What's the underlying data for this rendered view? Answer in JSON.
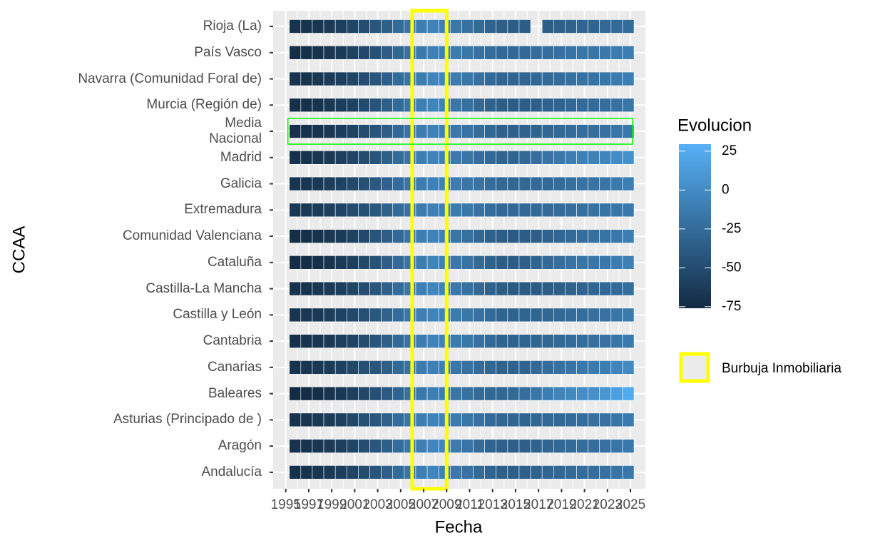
{
  "chart_data": {
    "type": "heatmap",
    "x_label": "Fecha",
    "y_label": "CCAA",
    "x": [
      1995,
      1996,
      1997,
      1998,
      1999,
      2000,
      2001,
      2002,
      2003,
      2004,
      2005,
      2006,
      2007,
      2008,
      2009,
      2010,
      2011,
      2012,
      2013,
      2014,
      2015,
      2016,
      2017,
      2018,
      2019,
      2020,
      2021,
      2022,
      2023,
      2024
    ],
    "xlim": [
      1993.9,
      2026.3
    ],
    "xticks": [
      1995,
      1997,
      1999,
      2001,
      2003,
      2005,
      2007,
      2009,
      2011,
      2013,
      2015,
      2017,
      2019,
      2021,
      2023,
      2025
    ],
    "categories": [
      "Rioja (La)",
      "País Vasco",
      "Navarra (Comunidad Foral de)",
      "Murcia (Región de)",
      "Media\nNacional",
      "Madrid",
      "Galicia",
      "Extremadura",
      "Comunidad Valenciana",
      "Cataluña",
      "Castilla-La Mancha",
      "Castilla y León",
      "Cantabria",
      "Canarias",
      "Baleares",
      "Asturias (Principado de )",
      "Aragón",
      "Andalucía"
    ],
    "values": [
      [
        -70,
        -69,
        -67,
        -64,
        -60,
        -55,
        -49,
        -42,
        -34,
        -26,
        -18,
        -11,
        -7,
        -9,
        -16,
        -21,
        -26,
        -31,
        -35,
        -37,
        -37,
        null,
        -36,
        -34,
        -32,
        -30,
        -30,
        -28,
        -26,
        -24
      ],
      [
        -74,
        -72,
        -70,
        -67,
        -63,
        -58,
        -52,
        -45,
        -37,
        -29,
        -21,
        -14,
        -9,
        -9,
        -13,
        -16,
        -20,
        -24,
        -27,
        -28,
        -27,
        -25,
        -23,
        -21,
        -19,
        -17,
        -17,
        -15,
        -13,
        -11
      ],
      [
        -70,
        -69,
        -67,
        -64,
        -60,
        -55,
        -49,
        -42,
        -34,
        -26,
        -18,
        -11,
        -6,
        -6,
        -12,
        -16,
        -21,
        -26,
        -30,
        -31,
        -30,
        -28,
        -26,
        -24,
        -22,
        -20,
        -19,
        -17,
        -14,
        -11
      ],
      [
        -72,
        -71,
        -69,
        -66,
        -62,
        -57,
        -51,
        -44,
        -35,
        -26,
        -17,
        -10,
        -6,
        -8,
        -16,
        -21,
        -27,
        -32,
        -36,
        -37,
        -36,
        -34,
        -32,
        -30,
        -28,
        -26,
        -25,
        -23,
        -20,
        -17
      ],
      [
        -72,
        -71,
        -69,
        -66,
        -62,
        -57,
        -51,
        -44,
        -36,
        -27,
        -19,
        -12,
        -8,
        -9,
        -15,
        -19,
        -24,
        -29,
        -33,
        -34,
        -33,
        -31,
        -29,
        -27,
        -25,
        -23,
        -23,
        -21,
        -18,
        -15
      ],
      [
        -71,
        -70,
        -68,
        -65,
        -61,
        -56,
        -50,
        -43,
        -35,
        -26,
        -18,
        -11,
        -7,
        -8,
        -14,
        -18,
        -23,
        -27,
        -30,
        -30,
        -27,
        -23,
        -19,
        -15,
        -11,
        -8,
        -8,
        -5,
        0,
        5
      ],
      [
        -68,
        -67,
        -65,
        -62,
        -58,
        -53,
        -47,
        -40,
        -33,
        -25,
        -18,
        -12,
        -8,
        -8,
        -12,
        -16,
        -20,
        -25,
        -28,
        -29,
        -28,
        -27,
        -26,
        -24,
        -22,
        -20,
        -19,
        -17,
        -14,
        -11
      ],
      [
        -66,
        -65,
        -63,
        -60,
        -56,
        -51,
        -46,
        -40,
        -33,
        -26,
        -19,
        -13,
        -9,
        -9,
        -13,
        -16,
        -20,
        -24,
        -27,
        -28,
        -28,
        -27,
        -26,
        -25,
        -23,
        -22,
        -21,
        -19,
        -17,
        -15
      ],
      [
        -73,
        -72,
        -70,
        -67,
        -63,
        -58,
        -52,
        -44,
        -36,
        -27,
        -18,
        -11,
        -7,
        -9,
        -17,
        -22,
        -28,
        -33,
        -37,
        -38,
        -37,
        -35,
        -32,
        -29,
        -26,
        -23,
        -22,
        -19,
        -15,
        -11
      ],
      [
        -75,
        -74,
        -72,
        -69,
        -65,
        -60,
        -53,
        -45,
        -36,
        -27,
        -18,
        -11,
        -6,
        -8,
        -15,
        -20,
        -26,
        -32,
        -36,
        -37,
        -35,
        -31,
        -27,
        -23,
        -20,
        -17,
        -17,
        -15,
        -12,
        -9
      ],
      [
        -70,
        -69,
        -67,
        -64,
        -60,
        -55,
        -49,
        -42,
        -34,
        -25,
        -16,
        -9,
        -5,
        -7,
        -15,
        -21,
        -27,
        -33,
        -37,
        -39,
        -39,
        -38,
        -37,
        -35,
        -33,
        -31,
        -30,
        -28,
        -26,
        -23
      ],
      [
        -68,
        -67,
        -65,
        -62,
        -58,
        -53,
        -47,
        -40,
        -32,
        -24,
        -16,
        -10,
        -6,
        -7,
        -12,
        -16,
        -21,
        -26,
        -30,
        -31,
        -31,
        -30,
        -29,
        -27,
        -25,
        -23,
        -22,
        -20,
        -17,
        -14
      ],
      [
        -71,
        -70,
        -68,
        -65,
        -61,
        -56,
        -50,
        -43,
        -35,
        -27,
        -19,
        -12,
        -7,
        -7,
        -12,
        -16,
        -21,
        -26,
        -30,
        -31,
        -31,
        -30,
        -29,
        -27,
        -25,
        -23,
        -22,
        -20,
        -17,
        -14
      ],
      [
        -69,
        -68,
        -66,
        -63,
        -59,
        -54,
        -48,
        -42,
        -35,
        -27,
        -20,
        -13,
        -9,
        -10,
        -16,
        -20,
        -25,
        -29,
        -32,
        -32,
        -30,
        -27,
        -24,
        -21,
        -18,
        -15,
        -14,
        -11,
        -6,
        -1
      ],
      [
        -76,
        -75,
        -73,
        -70,
        -66,
        -61,
        -54,
        -46,
        -38,
        -30,
        -22,
        -15,
        -10,
        -11,
        -17,
        -21,
        -25,
        -28,
        -29,
        -27,
        -23,
        -17,
        -11,
        -6,
        -2,
        1,
        2,
        8,
        16,
        25
      ],
      [
        -69,
        -68,
        -66,
        -63,
        -59,
        -54,
        -48,
        -41,
        -33,
        -25,
        -17,
        -11,
        -7,
        -7,
        -12,
        -16,
        -21,
        -26,
        -29,
        -30,
        -30,
        -29,
        -28,
        -27,
        -25,
        -23,
        -22,
        -20,
        -17,
        -14
      ],
      [
        -70,
        -69,
        -67,
        -64,
        -60,
        -55,
        -49,
        -42,
        -34,
        -25,
        -16,
        -9,
        -4,
        -5,
        -13,
        -18,
        -24,
        -30,
        -34,
        -35,
        -34,
        -32,
        -30,
        -28,
        -26,
        -24,
        -23,
        -21,
        -18,
        -15
      ],
      [
        -71,
        -70,
        -68,
        -65,
        -61,
        -56,
        -50,
        -43,
        -35,
        -26,
        -17,
        -10,
        -6,
        -8,
        -15,
        -20,
        -26,
        -31,
        -34,
        -35,
        -34,
        -32,
        -30,
        -28,
        -26,
        -24,
        -23,
        -21,
        -18,
        -15
      ]
    ],
    "colorbar": {
      "title": "Evolucion",
      "lim": [
        -76,
        29.5
      ],
      "ticks": [
        -75,
        -50,
        -25,
        0,
        25
      ],
      "low": "#132B43",
      "high": "#56B1F7"
    },
    "highlight": {
      "label": "Burbuja Inmobiliaria",
      "xrange": [
        2006,
        2009
      ],
      "color": "#ffff00"
    },
    "row_highlight": {
      "category": "Media\nNacional",
      "color": "#00ff00"
    }
  }
}
